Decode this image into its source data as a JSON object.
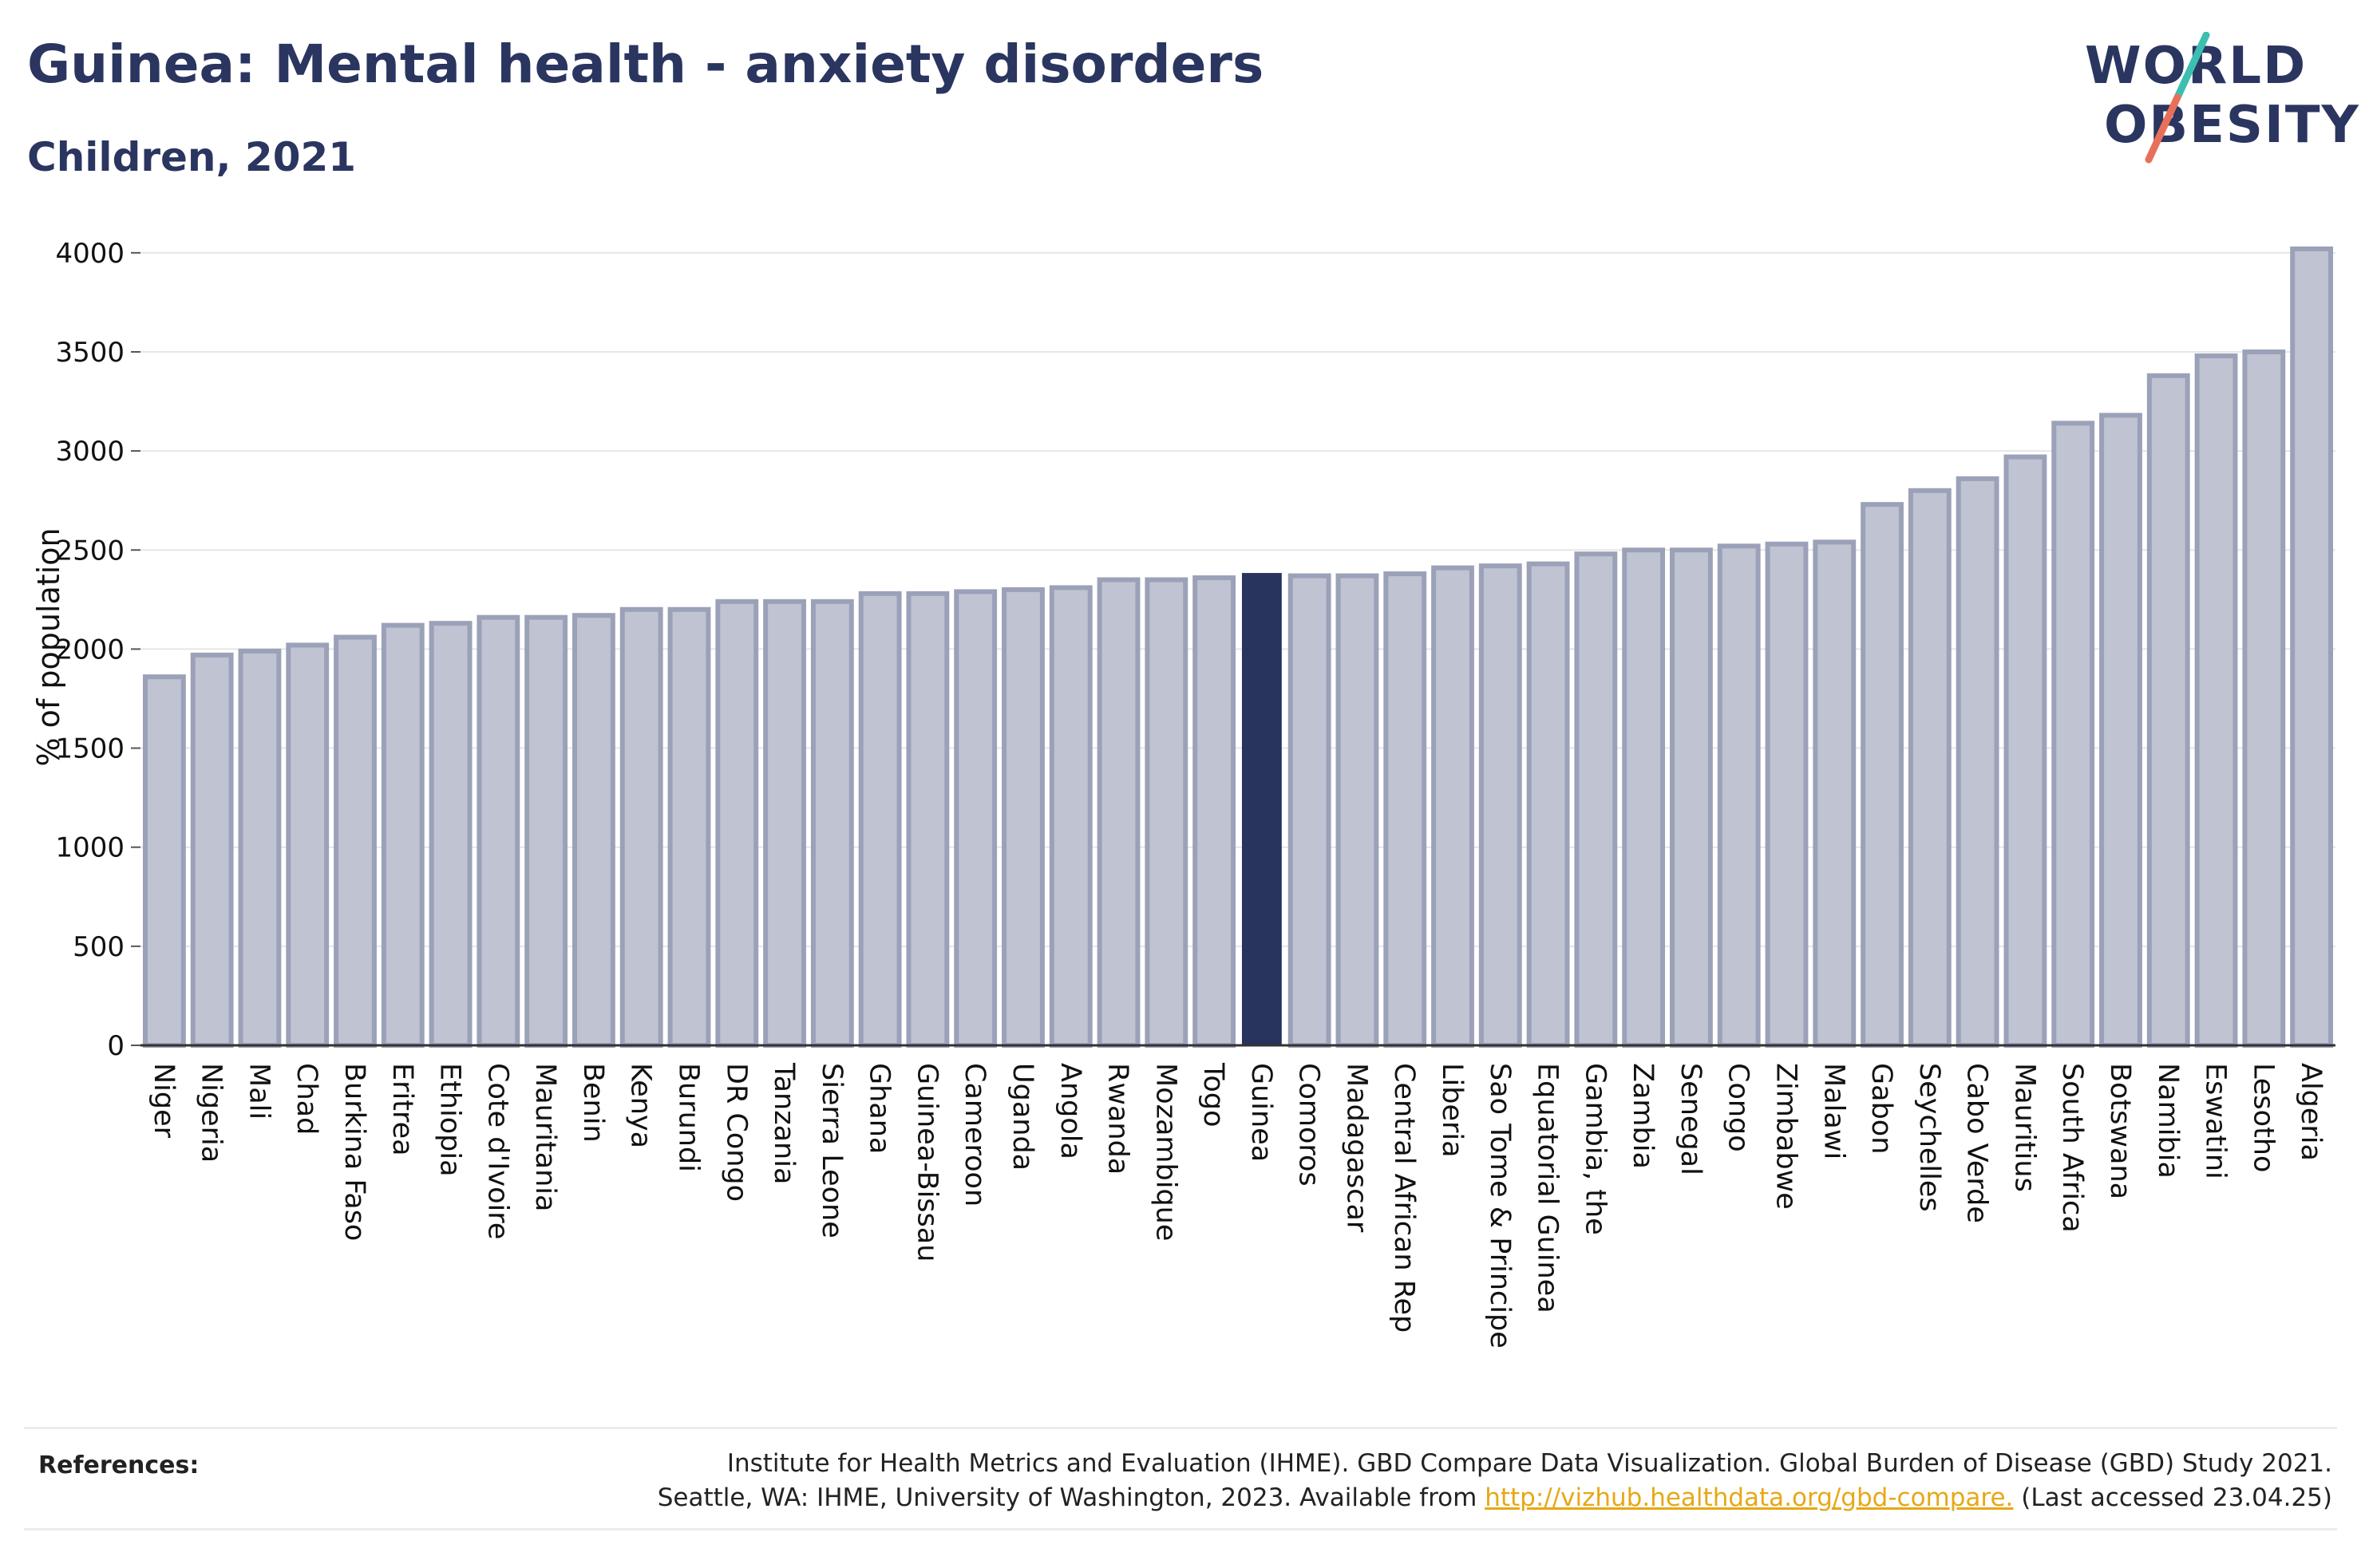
{
  "title": "Guinea: Mental health - anxiety disorders",
  "subtitle": "Children, 2021",
  "logo": {
    "line1": "WORLD",
    "line2": "OBESITY"
  },
  "references": {
    "label": "References:",
    "line1": "Institute for Health Metrics and Evaluation (IHME). GBD Compare Data Visualization. Global Burden of Disease (GBD) Study 2021.",
    "line2_pre": "Seattle, WA: IHME, University of Washington, 2023. Available from",
    "link": "http://vizhub.healthdata.org/gbd-compare.",
    "line2_post": "(Last accessed 23.04.25)"
  },
  "colors": {
    "bar": "#bfc3d2",
    "bar_border": "#9ba1b8",
    "highlight": "#28335e",
    "logo_accent_teal": "#3cbfb0",
    "logo_accent_red": "#e8705a"
  },
  "chart_data": {
    "type": "bar",
    "title": "Guinea: Mental health - anxiety disorders",
    "subtitle": "Children, 2021",
    "xlabel": "",
    "ylabel": "% of population",
    "ylim": [
      0,
      4100
    ],
    "yticks": [
      0,
      500,
      1000,
      1500,
      2000,
      2500,
      3000,
      3500,
      4000
    ],
    "grid": true,
    "highlight": "Guinea",
    "categories": [
      "Niger",
      "Nigeria",
      "Mali",
      "Chad",
      "Burkina Faso",
      "Eritrea",
      "Ethiopia",
      "Cote d'Ivoire",
      "Mauritania",
      "Benin",
      "Kenya",
      "Burundi",
      "DR Congo",
      "Tanzania",
      "Sierra Leone",
      "Ghana",
      "Guinea-Bissau",
      "Cameroon",
      "Uganda",
      "Angola",
      "Rwanda",
      "Mozambique",
      "Togo",
      "Guinea",
      "Comoros",
      "Madagascar",
      "Central African Rep",
      "Liberia",
      "Sao Tome & Principe",
      "Equatorial Guinea",
      "Gambia, the",
      "Zambia",
      "Senegal",
      "Congo",
      "Zimbabwe",
      "Malawi",
      "Gabon",
      "Seychelles",
      "Cabo Verde",
      "Mauritius",
      "South Africa",
      "Botswana",
      "Namibia",
      "Eswatini",
      "Lesotho",
      "Algeria"
    ],
    "values": [
      1860,
      1970,
      1990,
      2020,
      2060,
      2120,
      2130,
      2160,
      2160,
      2170,
      2200,
      2200,
      2240,
      2240,
      2240,
      2280,
      2280,
      2290,
      2300,
      2310,
      2350,
      2350,
      2360,
      2380,
      2370,
      2370,
      2380,
      2410,
      2420,
      2430,
      2480,
      2500,
      2500,
      2520,
      2530,
      2540,
      2730,
      2800,
      2860,
      2970,
      3140,
      3180,
      3380,
      3480,
      3500,
      4020
    ]
  }
}
